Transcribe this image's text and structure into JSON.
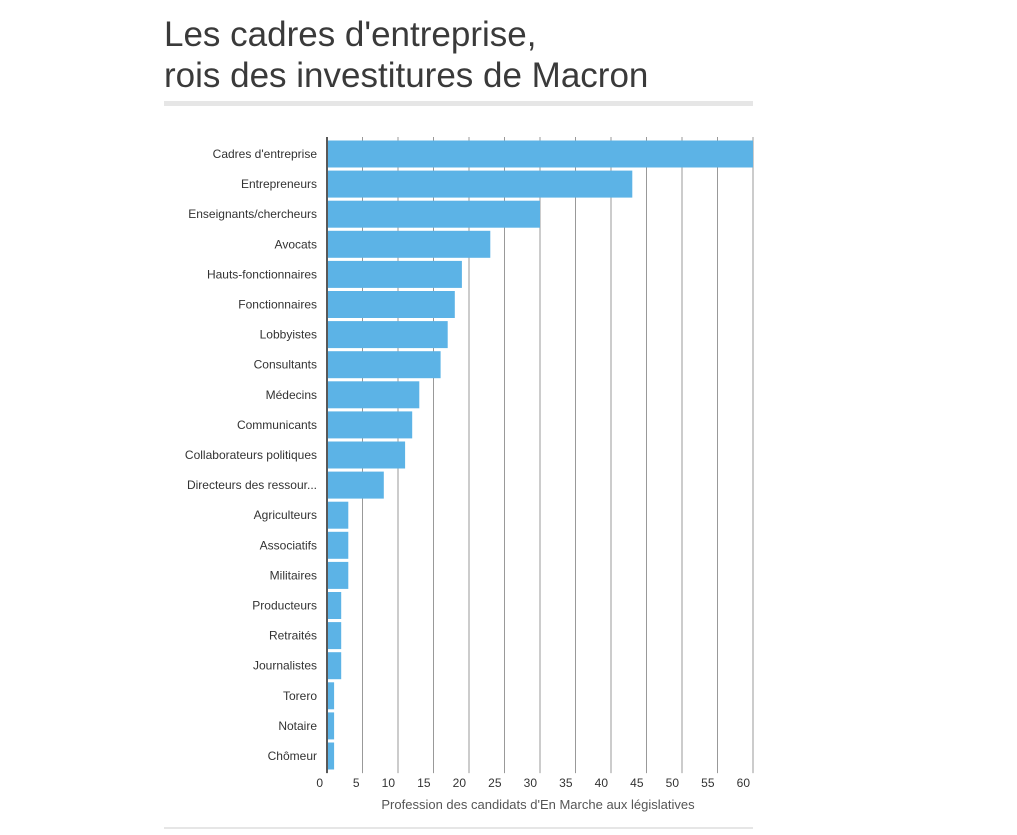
{
  "header": {
    "title_line1": "Les cadres d'entreprise,",
    "title_line2": "rois des investitures de Macron"
  },
  "chart_data": {
    "type": "bar",
    "orientation": "horizontal",
    "categories": [
      "Cadres d'entreprise",
      "Entrepreneurs",
      "Enseignants/chercheurs",
      "Avocats",
      "Hauts-fonctionnaires",
      "Fonctionnaires",
      "Lobbyistes",
      "Consultants",
      "Médecins",
      "Communicants",
      "Collaborateurs politiques",
      "Directeurs des ressour...",
      "Agriculteurs",
      "Associatifs",
      "Militaires",
      "Producteurs",
      "Retraités",
      "Journalistes",
      "Torero",
      "Notaire",
      "Chômeur"
    ],
    "values": [
      60,
      43,
      30,
      23,
      19,
      18,
      17,
      16,
      13,
      12,
      11,
      8,
      3,
      3,
      3,
      2,
      2,
      2,
      1,
      1,
      1
    ],
    "xlim": [
      0,
      60
    ],
    "xticks": [
      0,
      5,
      10,
      15,
      20,
      25,
      30,
      35,
      40,
      45,
      50,
      55,
      60
    ],
    "xlabel": "Profession des candidats d'En Marche aux législatives",
    "ylabel": "",
    "grid": true,
    "bar_color": "#5cb3e6",
    "grid_color": "#999999"
  }
}
